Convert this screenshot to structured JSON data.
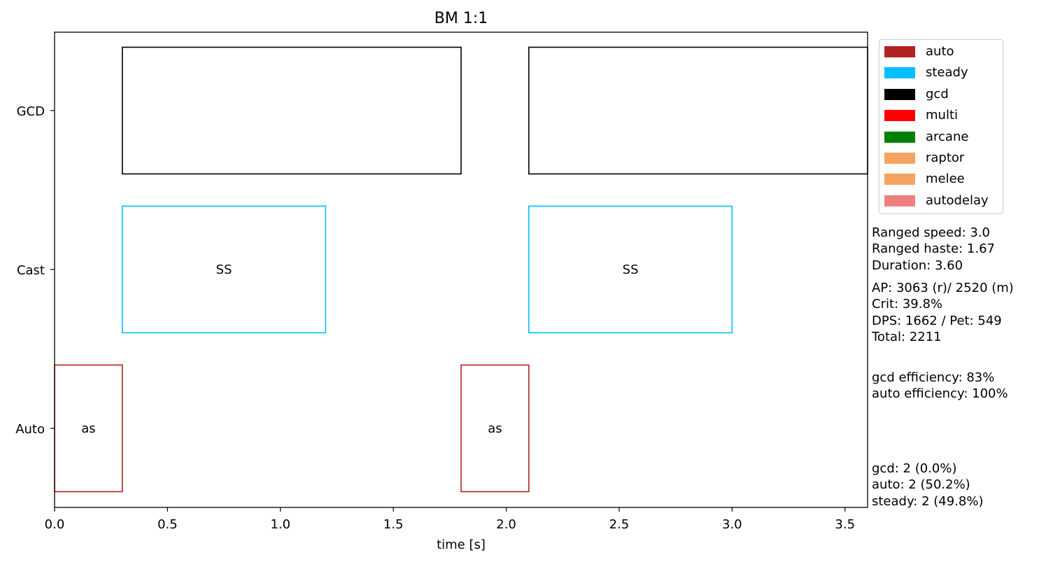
{
  "chart_data": {
    "type": "gantt",
    "title": "BM 1:1",
    "xlabel": "time [s]",
    "ylabel": "",
    "xlim": [
      0,
      3.6
    ],
    "x_ticks": [
      {
        "value": 0.0,
        "label": "0.0"
      },
      {
        "value": 0.5,
        "label": "0.5"
      },
      {
        "value": 1.0,
        "label": "1.0"
      },
      {
        "value": 1.5,
        "label": "1.5"
      },
      {
        "value": 2.0,
        "label": "2.0"
      },
      {
        "value": 2.5,
        "label": "2.5"
      },
      {
        "value": 3.0,
        "label": "3.0"
      },
      {
        "value": 3.5,
        "label": "3.5"
      }
    ],
    "rows": [
      "GCD",
      "Cast",
      "Auto"
    ],
    "grid": false,
    "legend_position": "outside-top-right",
    "bars": [
      {
        "row": "GCD",
        "start": 0.3,
        "end": 1.8,
        "series": "gcd",
        "label": ""
      },
      {
        "row": "GCD",
        "start": 2.1,
        "end": 3.6,
        "series": "gcd",
        "label": ""
      },
      {
        "row": "Cast",
        "start": 0.3,
        "end": 1.2,
        "series": "steady",
        "label": "SS"
      },
      {
        "row": "Cast",
        "start": 2.1,
        "end": 3.0,
        "series": "steady",
        "label": "SS"
      },
      {
        "row": "Auto",
        "start": 0.0,
        "end": 0.3,
        "series": "auto",
        "label": "as"
      },
      {
        "row": "Auto",
        "start": 1.8,
        "end": 2.1,
        "series": "auto",
        "label": "as"
      }
    ],
    "legend": [
      {
        "name": "auto",
        "color": "#b22222"
      },
      {
        "name": "steady",
        "color": "#00bfff"
      },
      {
        "name": "gcd",
        "color": "#000000"
      },
      {
        "name": "multi",
        "color": "#ff0000"
      },
      {
        "name": "arcane",
        "color": "#008000"
      },
      {
        "name": "raptor",
        "color": "#f4a460"
      },
      {
        "name": "melee",
        "color": "#f4a460"
      },
      {
        "name": "autodelay",
        "color": "#f08080"
      }
    ],
    "annotations": [
      [
        "Ranged speed: 3.0",
        "Ranged haste: 1.67",
        "Duration: 3.60"
      ],
      [
        "AP: 3063 (r)/ 2520 (m)",
        "Crit: 39.8%",
        "DPS: 1662 / Pet: 549",
        "Total: 2211"
      ],
      [
        "gcd efficiency: 83%",
        "auto efficiency: 100%"
      ],
      [
        "gcd: 2 (0.0%)",
        "auto: 2 (50.2%)",
        "steady: 2 (49.8%)"
      ]
    ]
  }
}
